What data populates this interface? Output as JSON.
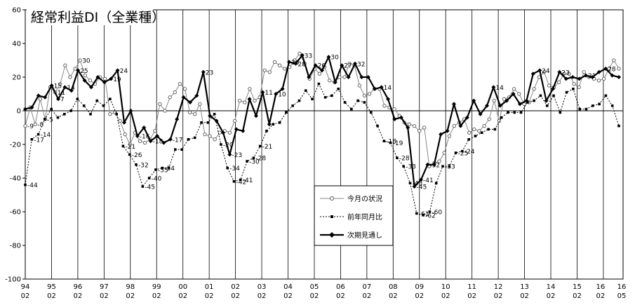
{
  "chart_data": {
    "type": "line",
    "title": "経常利益DI（全業種）",
    "ylim": [
      -100,
      60
    ],
    "yticks": [
      -100,
      -80,
      -60,
      -40,
      -20,
      0,
      20,
      40,
      60
    ],
    "x_year_labels": [
      "94",
      "95",
      "96",
      "97",
      "98",
      "99",
      "00",
      "01",
      "02",
      "03",
      "04",
      "05",
      "06",
      "07",
      "08",
      "09",
      "10",
      "11",
      "12",
      "13",
      "14",
      "15",
      "16",
      "16"
    ],
    "x_month_labels": [
      "02",
      "02",
      "02",
      "02",
      "02",
      "02",
      "02",
      "02",
      "02",
      "02",
      "02",
      "02",
      "02",
      "02",
      "02",
      "02",
      "02",
      "02",
      "02",
      "02",
      "02",
      "02",
      "02",
      "05"
    ],
    "legend": {
      "position": "center-right"
    },
    "grid": {
      "vertical_yearly": true,
      "horizontal": false
    },
    "series": [
      {
        "name": "今月の状況",
        "marker": "open-circle",
        "values": [
          -9,
          2,
          -8,
          7,
          -5,
          14,
          11,
          16,
          27,
          20,
          25,
          30,
          21,
          18,
          16,
          20,
          19,
          -2,
          -1,
          -6,
          -14,
          -20,
          -13,
          -18,
          -19,
          -17,
          -12,
          4,
          0,
          8,
          11,
          16,
          13,
          -1,
          -2,
          4,
          -14,
          -15,
          -17,
          -13,
          -12,
          -13,
          -6,
          6,
          5,
          13,
          6,
          8,
          24,
          23,
          29,
          27,
          25,
          26,
          30,
          34,
          28,
          19,
          25,
          22,
          26,
          18,
          17,
          20,
          20,
          28,
          27,
          15,
          9,
          10,
          13,
          13,
          3,
          2,
          1,
          -3,
          -7,
          -8,
          -9,
          -12,
          -10,
          -33,
          -31,
          -30,
          -25,
          -15,
          -9,
          -7,
          -5,
          -13,
          -11,
          -12,
          -9,
          -5,
          6,
          -6,
          7,
          8,
          13,
          10,
          4,
          5,
          13,
          20,
          23,
          15,
          14,
          17,
          22,
          22,
          16,
          14,
          23,
          20,
          19,
          18,
          19,
          25,
          30,
          25
        ]
      },
      {
        "name": "前年同月比",
        "marker": "filled-square",
        "values": [
          -44,
          -17,
          -14,
          -5,
          1,
          -4,
          -2,
          0,
          7,
          3,
          -2,
          6,
          3,
          7,
          -2,
          -21,
          -26,
          -32,
          -45,
          -40,
          -35,
          -34,
          -34,
          -23,
          -23,
          -17,
          -16,
          -7,
          -7,
          -2,
          -20,
          -34,
          -42,
          -41,
          -30,
          -28,
          -21,
          -12,
          -8,
          -7,
          -1,
          3,
          6,
          12,
          7,
          16,
          8,
          9,
          13,
          5,
          1,
          6,
          5,
          -1,
          -9,
          -18,
          -19,
          -28,
          -33,
          -43,
          -61,
          -62,
          -60,
          -43,
          -33,
          -33,
          -25,
          -24,
          -17,
          -15,
          -13,
          -11,
          -11,
          -4,
          -1,
          -1,
          -1,
          5,
          6,
          9,
          3,
          9,
          -1,
          11,
          13,
          1,
          1,
          3,
          4,
          9,
          3,
          -9
        ]
      },
      {
        "name": "次期見通し",
        "marker": "filled-diamond",
        "values": [
          1,
          2,
          9,
          8,
          15,
          7,
          14,
          12,
          24,
          18,
          14,
          20,
          17,
          19,
          24,
          -7,
          0,
          -15,
          -10,
          -18,
          -15,
          -19,
          -17,
          -5,
          8,
          5,
          9,
          23,
          -3,
          -6,
          -13,
          -26,
          -11,
          -12,
          7,
          -3,
          11,
          -8,
          10,
          13,
          29,
          28,
          33,
          20,
          27,
          24,
          32,
          17,
          27,
          20,
          28,
          20,
          20,
          13,
          14,
          7,
          -5,
          -4,
          -10,
          -45,
          -41,
          -32,
          -32,
          -14,
          -12,
          4,
          -9,
          -4,
          6,
          -2,
          3,
          14,
          3,
          6,
          10,
          4,
          6,
          22,
          24,
          6,
          13,
          23,
          19,
          20,
          19,
          21,
          20,
          23,
          25,
          21,
          20
        ]
      }
    ],
    "data_labels": [
      {
        "series": "今月の状況",
        "v": -9
      },
      {
        "series": "前年同月比",
        "v": -44
      },
      {
        "series": "前年同月比",
        "v": -17
      },
      {
        "series": "前年同月比",
        "v": -14
      },
      {
        "series": "今月の状況",
        "v": -8
      },
      {
        "series": "前年同月比",
        "v": -5
      },
      {
        "series": "次期見通し",
        "v": 15
      },
      {
        "series": "次期見通し",
        "v": 7
      },
      {
        "series": "次期見通し",
        "v": 14
      },
      {
        "series": "今月の状況",
        "v": 11
      },
      {
        "series": "次期見通し",
        "v": 26
      },
      {
        "series": "次期見通し",
        "v": 30
      },
      {
        "series": "次期見通し",
        "v": 28
      },
      {
        "series": "次期見通し",
        "v": 21
      },
      {
        "series": "次期見通し",
        "v": 19
      },
      {
        "series": "次期見通し",
        "v": 24
      },
      {
        "series": "次期見通し",
        "v": 14
      },
      {
        "series": "前年同月比",
        "v": -21
      },
      {
        "series": "前年同月比",
        "v": -26
      },
      {
        "series": "前年同月比",
        "v": -32
      },
      {
        "series": "前年同月比",
        "v": -45
      },
      {
        "series": "前年同月比",
        "v": -40
      },
      {
        "series": "前年同月比",
        "v": -35
      },
      {
        "series": "前年同月比",
        "v": -34
      },
      {
        "series": "次期見通し",
        "v": -18
      },
      {
        "series": "次期見通し",
        "v": -23
      },
      {
        "series": "次期見通し",
        "v": -17
      },
      {
        "series": "次期見通し",
        "v": -16
      },
      {
        "series": "次期見通し",
        "v": 23
      },
      {
        "series": "前年同月比",
        "v": -20
      },
      {
        "series": "前年同月比",
        "v": -34
      },
      {
        "series": "前年同月比",
        "v": -42
      },
      {
        "series": "前年同月比",
        "v": -41
      },
      {
        "series": "前年同月比",
        "v": -30
      },
      {
        "series": "前年同月比",
        "v": -28
      },
      {
        "series": "前年同月比",
        "v": -21
      },
      {
        "series": "次期見通し",
        "v": 11
      },
      {
        "series": "次期見通し",
        "v": 10
      },
      {
        "series": "次期見通し",
        "v": 30
      },
      {
        "series": "次期見通し",
        "v": 33
      },
      {
        "series": "次期見通し",
        "v": 32
      },
      {
        "series": "次期見通し",
        "v": 27
      },
      {
        "series": "次期見通し",
        "v": 28
      },
      {
        "series": "前年同月比",
        "v": -18
      },
      {
        "series": "前年同月比",
        "v": -19
      },
      {
        "series": "前年同月比",
        "v": -28
      },
      {
        "series": "前年同月比",
        "v": -33
      },
      {
        "series": "前年同月比",
        "v": -43
      },
      {
        "series": "前年同月比",
        "v": -61
      },
      {
        "series": "前年同月比",
        "v": -62
      },
      {
        "series": "前年同月比",
        "v": -60
      },
      {
        "series": "次期見通し",
        "v": -45
      },
      {
        "series": "次期見通し",
        "v": -41
      },
      {
        "series": "次期見通し",
        "v": -32
      },
      {
        "series": "前年同月比",
        "v": -33
      },
      {
        "series": "前年同月比",
        "v": -25
      },
      {
        "series": "前年同月比",
        "v": -24
      },
      {
        "series": "次期見通し",
        "v": 14
      },
      {
        "series": "次期見通し",
        "v": 24
      },
      {
        "series": "次期見通し",
        "v": 23
      },
      {
        "series": "次期見通し",
        "v": 25
      },
      {
        "series": "今月の状況",
        "v": 30
      }
    ]
  }
}
